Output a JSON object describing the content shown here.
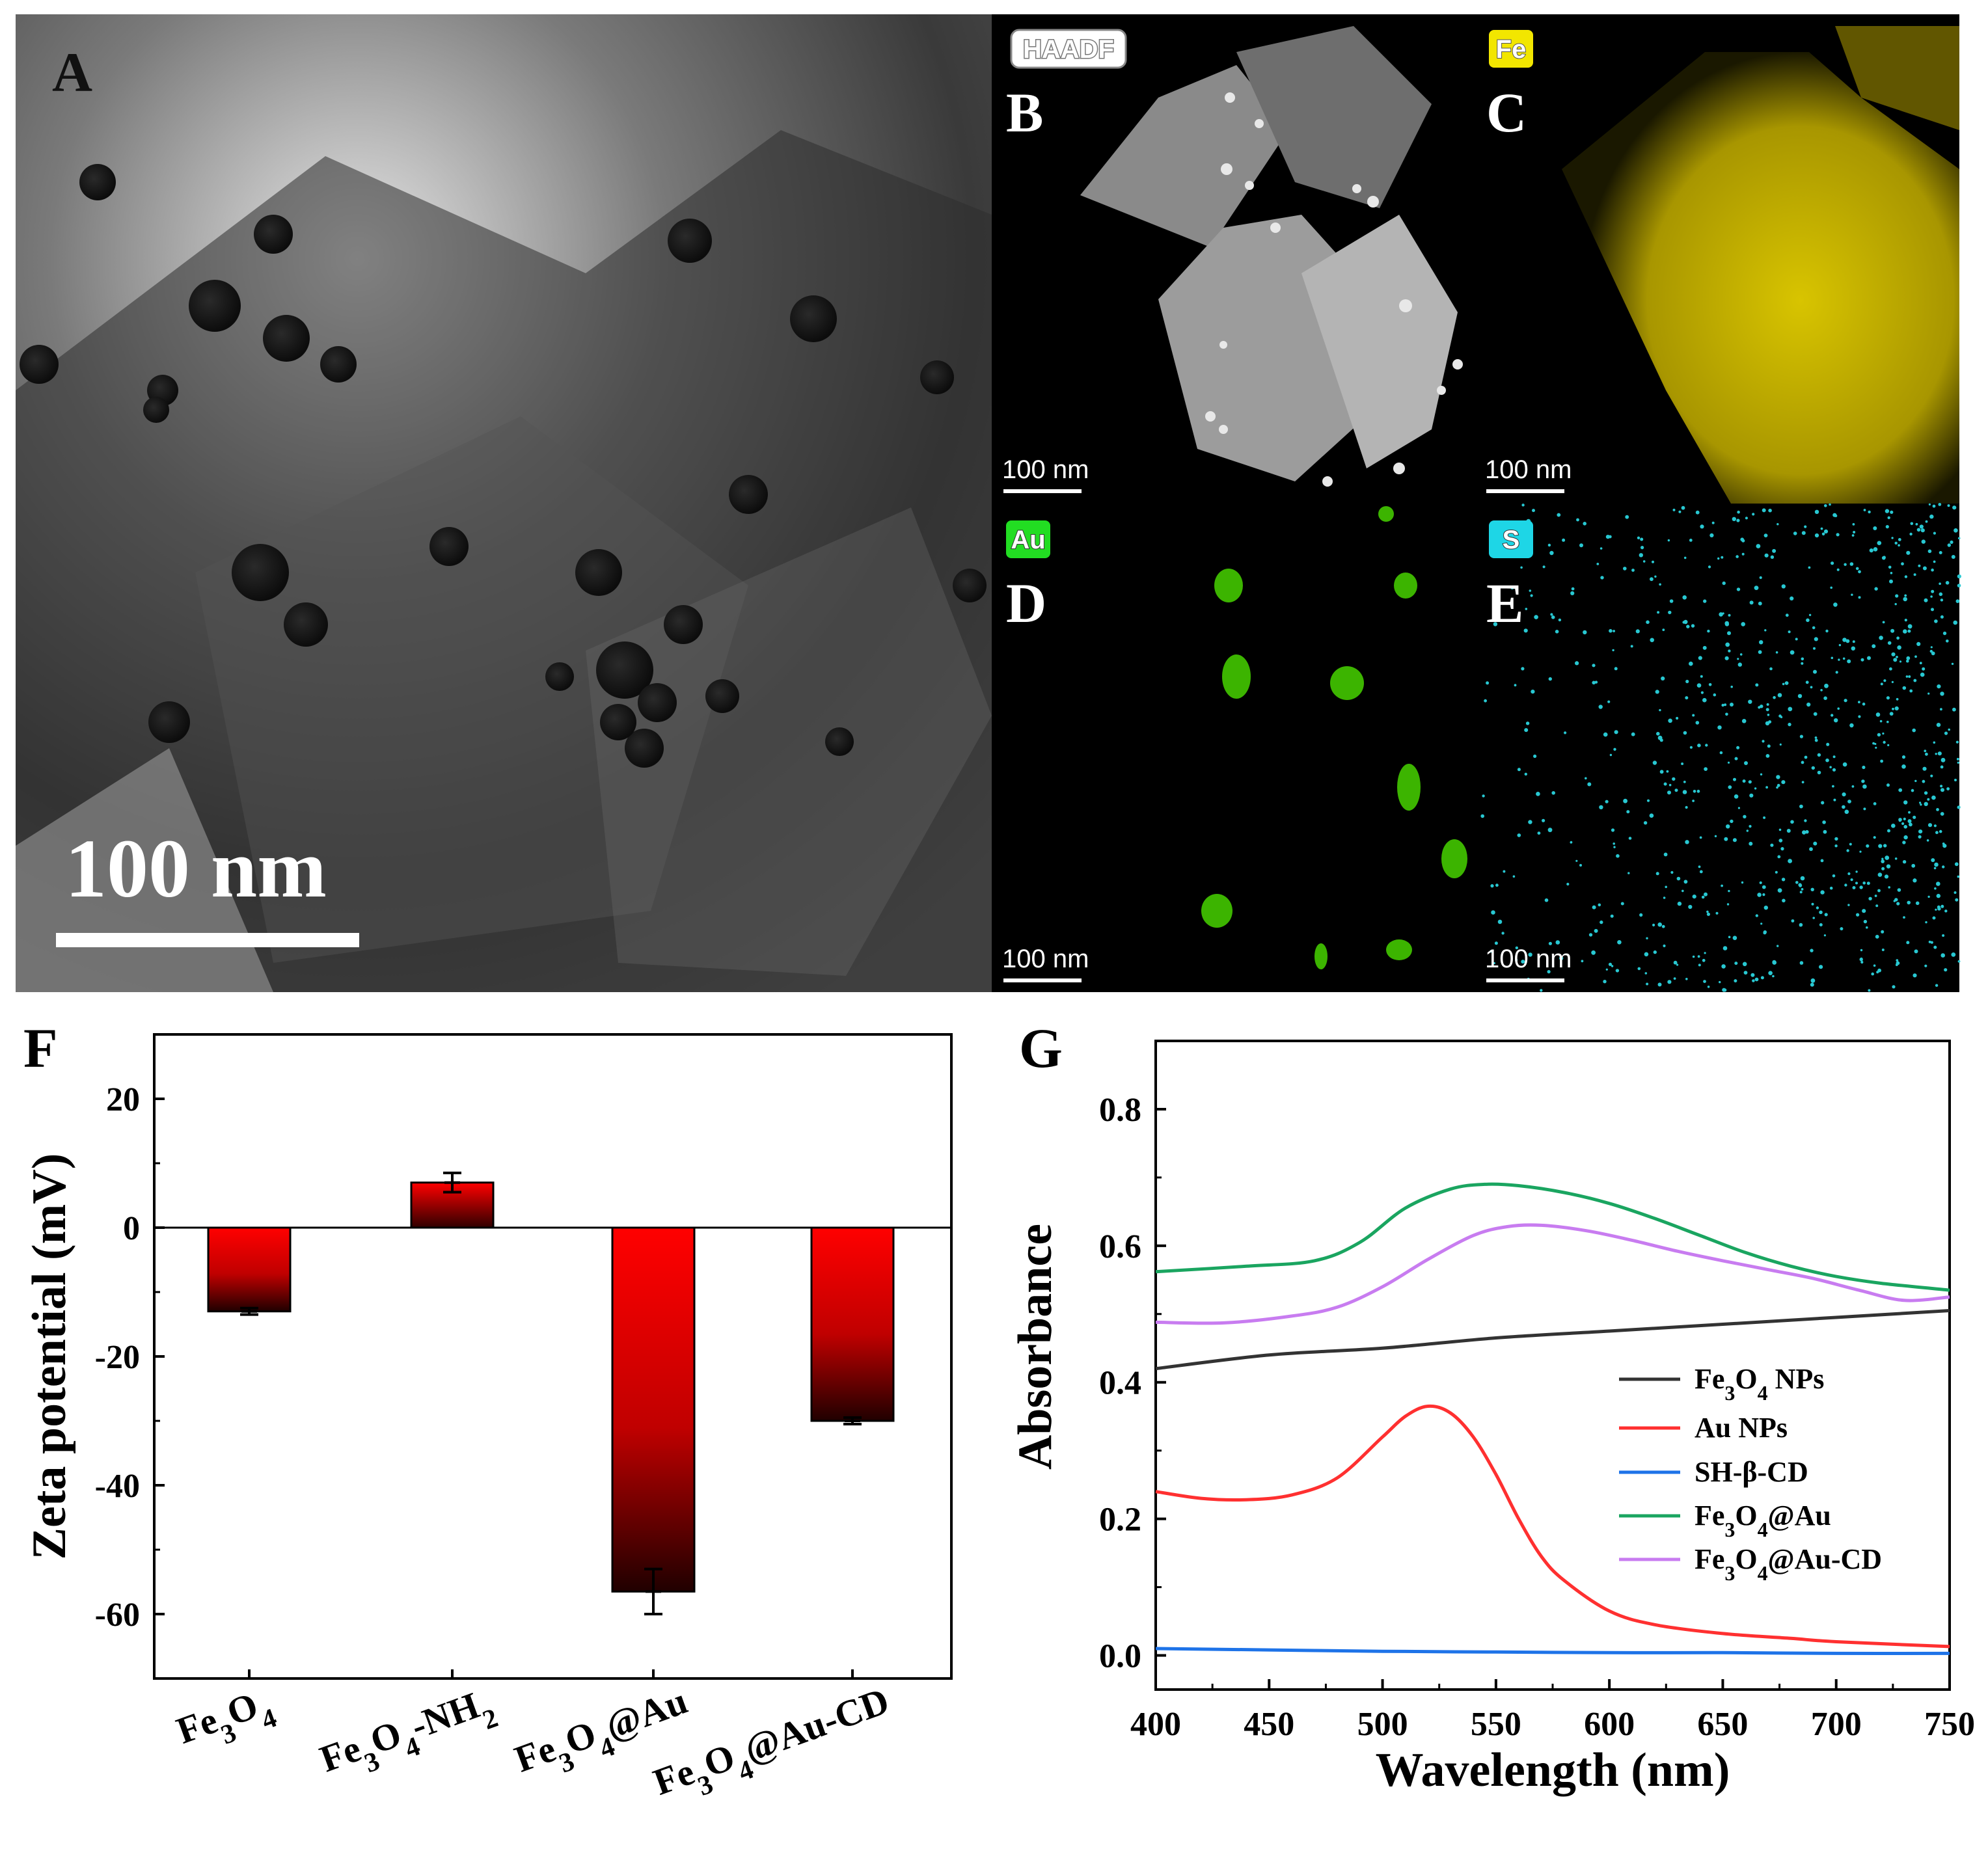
{
  "panels": {
    "A": {
      "letter": "A",
      "scale_label": "100 nm"
    },
    "B": {
      "letter": "B",
      "tag": "HAADF",
      "scale_label": "100 nm"
    },
    "C": {
      "letter": "C",
      "tag": "Fe",
      "scale_label": "100 nm"
    },
    "D": {
      "letter": "D",
      "tag": "Au",
      "scale_label": "100 nm"
    },
    "E": {
      "letter": "E",
      "tag": "S",
      "scale_label": "100 nm"
    },
    "F": {
      "letter": "F"
    },
    "G": {
      "letter": "G"
    }
  },
  "colors": {
    "fe_tag": "#f2e600",
    "au_tag": "#22dd22",
    "s_tag": "#1ed6e6",
    "fe_map": "#c8b400",
    "au_map": "#3cb400",
    "s_map": "#28c8d2",
    "bar_top": "#ff0000",
    "bar_bottom": "#200000"
  },
  "chart_data": [
    {
      "type": "bar",
      "panel": "F",
      "title": "",
      "xlabel": "",
      "ylabel": "Zeta potential (mV)",
      "ylim": [
        -70,
        30
      ],
      "yticks": [
        20,
        0,
        -20,
        -40,
        -60
      ],
      "categories": [
        "Fe3O4",
        "Fe3O4-NH2",
        "Fe3O4@Au",
        "Fe3O4@Au-CD"
      ],
      "values": [
        -13,
        7,
        -56.5,
        -30
      ],
      "errors": [
        0.5,
        1.5,
        3.5,
        0.5
      ]
    },
    {
      "type": "line",
      "panel": "G",
      "title": "",
      "xlabel": "Wavelength (nm)",
      "ylabel": "Absorbance",
      "xlim": [
        400,
        750
      ],
      "ylim": [
        -0.05,
        0.9
      ],
      "xticks": [
        400,
        450,
        500,
        550,
        600,
        650,
        700,
        750
      ],
      "yticks": [
        0.0,
        0.2,
        0.4,
        0.6,
        0.8
      ],
      "legend_position": "bottom-right",
      "series": [
        {
          "name": "Fe3O4 NPs",
          "color": "#333333",
          "x": [
            400,
            450,
            500,
            550,
            600,
            650,
            700,
            750
          ],
          "y": [
            0.42,
            0.44,
            0.45,
            0.465,
            0.475,
            0.485,
            0.495,
            0.505
          ]
        },
        {
          "name": "Au NPs",
          "color": "#ff3030",
          "x": [
            400,
            420,
            440,
            460,
            480,
            500,
            510,
            520,
            530,
            540,
            550,
            560,
            570,
            580,
            600,
            620,
            650,
            680,
            700,
            750
          ],
          "y": [
            0.24,
            0.23,
            0.228,
            0.235,
            0.26,
            0.32,
            0.35,
            0.365,
            0.355,
            0.32,
            0.265,
            0.2,
            0.145,
            0.11,
            0.065,
            0.045,
            0.032,
            0.025,
            0.02,
            0.013
          ]
        },
        {
          "name": "SH-β-CD",
          "color": "#1e73e8",
          "x": [
            400,
            450,
            500,
            550,
            600,
            650,
            700,
            750
          ],
          "y": [
            0.01,
            0.008,
            0.006,
            0.005,
            0.004,
            0.004,
            0.003,
            0.003
          ]
        },
        {
          "name": "Fe3O4@Au",
          "color": "#1aa560",
          "x": [
            400,
            440,
            470,
            490,
            510,
            530,
            545,
            560,
            580,
            600,
            620,
            640,
            660,
            680,
            700,
            720,
            750
          ],
          "y": [
            0.562,
            0.57,
            0.578,
            0.605,
            0.655,
            0.683,
            0.69,
            0.688,
            0.678,
            0.662,
            0.64,
            0.615,
            0.59,
            0.57,
            0.555,
            0.545,
            0.535
          ]
        },
        {
          "name": "Fe3O4@Au-CD",
          "color": "#c87cf0",
          "x": [
            400,
            430,
            460,
            480,
            500,
            520,
            540,
            555,
            570,
            590,
            610,
            630,
            650,
            670,
            690,
            710,
            730,
            750
          ],
          "y": [
            0.488,
            0.487,
            0.497,
            0.51,
            0.54,
            0.58,
            0.615,
            0.628,
            0.63,
            0.622,
            0.608,
            0.592,
            0.578,
            0.565,
            0.552,
            0.535,
            0.52,
            0.525
          ]
        }
      ],
      "legend": [
        "Fe3O4 NPs",
        "Au NPs",
        "SH-β-CD",
        "Fe3O4@Au",
        "Fe3O4@Au-CD"
      ]
    }
  ]
}
